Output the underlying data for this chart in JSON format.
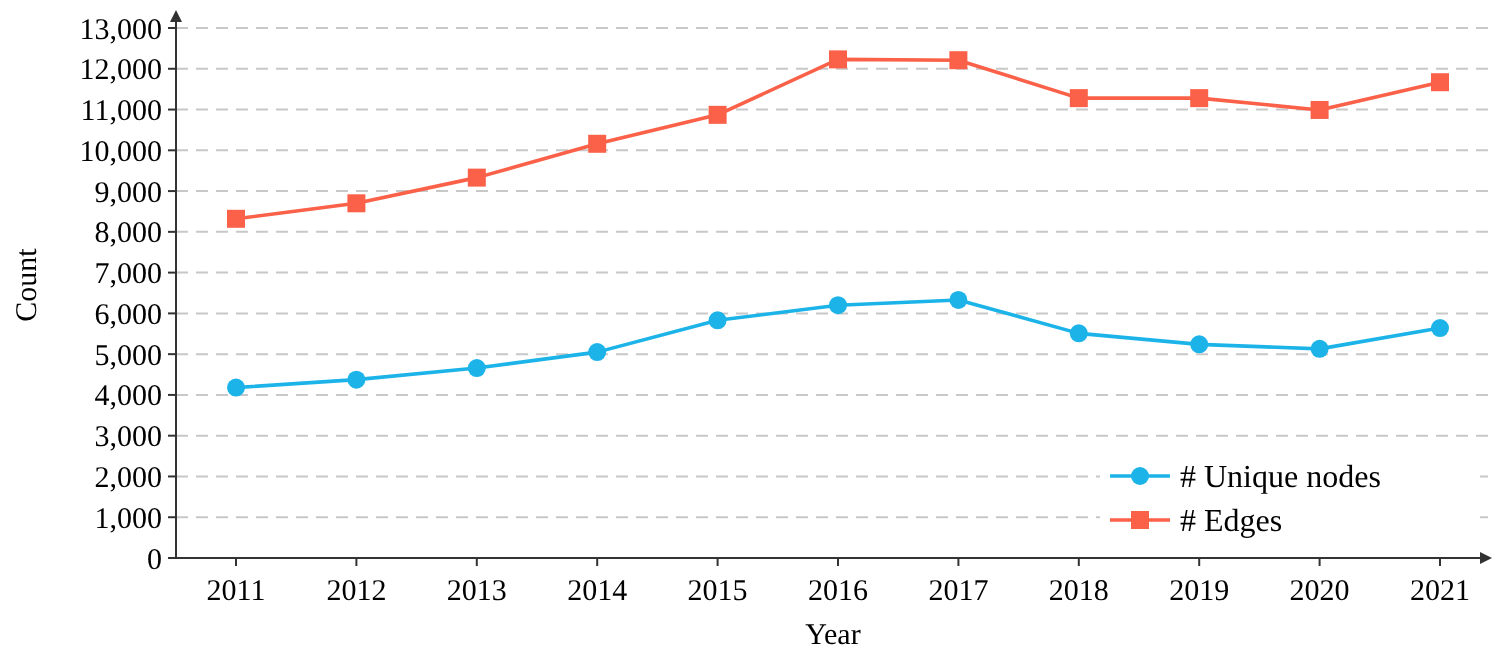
{
  "chart_data": {
    "type": "line",
    "xlabel": "Year",
    "ylabel": "Count",
    "categories": [
      "2011",
      "2012",
      "2013",
      "2014",
      "2015",
      "2016",
      "2017",
      "2018",
      "2019",
      "2020",
      "2021"
    ],
    "series": [
      {
        "name": "# Unique nodes",
        "color": "#1cb4e8",
        "marker": "circle",
        "values": [
          4180,
          4375,
          4660,
          5050,
          5830,
          6200,
          6330,
          5510,
          5240,
          5130,
          5640
        ]
      },
      {
        "name": "# Edges",
        "color": "#fa6148",
        "marker": "square",
        "values": [
          8320,
          8700,
          9330,
          10160,
          10870,
          12230,
          12210,
          11280,
          11280,
          10990,
          11670
        ]
      }
    ],
    "ylim": [
      0,
      13000
    ],
    "yticks": [
      0,
      {
        "value": 1000,
        "label": "1,000"
      },
      {
        "value": 2000,
        "label": "2,000"
      },
      {
        "value": 3000,
        "label": "3,000"
      },
      {
        "value": 4000,
        "label": "4,000"
      },
      {
        "value": 5000,
        "label": "5,000"
      },
      {
        "value": 6000,
        "label": "6,000"
      },
      {
        "value": 7000,
        "label": "7,000"
      },
      {
        "value": 8000,
        "label": "8,000"
      },
      {
        "value": 9000,
        "label": "9,000"
      },
      {
        "value": 10000,
        "label": "10,000"
      },
      {
        "value": 11000,
        "label": "11,000"
      },
      {
        "value": 12000,
        "label": "12,000"
      },
      {
        "value": 13000,
        "label": "13,000"
      }
    ],
    "grid": "y",
    "legend": "bottom right",
    "line_style": "solid"
  }
}
